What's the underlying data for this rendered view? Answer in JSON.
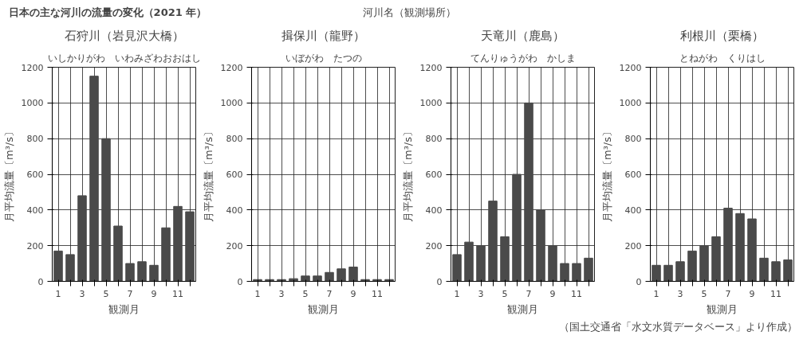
{
  "chart_data": [
    {
      "type": "other",
      "title": "日本の主な河川の流量の変化（2021 年）",
      "annotations": [
        "河川名（観測場所）",
        "（国土交通省「水文水質データベース」より作成）"
      ]
    },
    {
      "type": "bar",
      "title": "石狩川（岩見沢大橋）",
      "subtitle": "いしかりがわ　いわみざわおおはし",
      "xlabel": "観測月",
      "ylabel": "月平均流量〔m³/s〕",
      "categories": [
        "1",
        null,
        "3",
        null,
        "5",
        null,
        "7",
        null,
        "9",
        null,
        "11",
        null
      ],
      "values": [
        170,
        150,
        480,
        1150,
        800,
        310,
        100,
        110,
        90,
        300,
        420,
        390
      ],
      "color": "#4a4a4a",
      "ylim": [
        0,
        1200
      ],
      "yticks": [
        0,
        200,
        400,
        600,
        800,
        1000,
        1200
      ],
      "grid": true
    },
    {
      "type": "bar",
      "title": "揖保川（龍野）",
      "subtitle": "いぼがわ　たつの",
      "xlabel": "観測月",
      "ylabel": "月平均流量〔m³/s〕",
      "categories": [
        "1",
        null,
        "3",
        null,
        "5",
        null,
        "7",
        null,
        "9",
        null,
        "11",
        null
      ],
      "values": [
        10,
        10,
        10,
        15,
        30,
        30,
        50,
        70,
        80,
        10,
        10,
        10
      ],
      "color": "#4a4a4a",
      "ylim": [
        0,
        1200
      ],
      "yticks": [
        0,
        200,
        400,
        600,
        800,
        1000,
        1200
      ],
      "grid": true
    },
    {
      "type": "bar",
      "title": "天竜川（鹿島）",
      "subtitle": "てんりゅうがわ　かしま",
      "xlabel": "観測月",
      "ylabel": "月平均流量〔m³/s〕",
      "categories": [
        "1",
        null,
        "3",
        null,
        "5",
        null,
        "7",
        null,
        "9",
        null,
        "11",
        null
      ],
      "values": [
        150,
        220,
        200,
        450,
        250,
        600,
        1000,
        400,
        200,
        100,
        100,
        130
      ],
      "color": "#4a4a4a",
      "ylim": [
        0,
        1200
      ],
      "yticks": [
        0,
        200,
        400,
        600,
        800,
        1000,
        1200
      ],
      "grid": true
    },
    {
      "type": "bar",
      "title": "利根川（栗橋）",
      "subtitle": "とねがわ　くりはし",
      "xlabel": "観測月",
      "ylabel": "月平均流量〔m³/s〕",
      "categories": [
        "1",
        null,
        "3",
        null,
        "5",
        null,
        "7",
        null,
        "9",
        null,
        "11",
        null
      ],
      "values": [
        90,
        90,
        110,
        170,
        200,
        250,
        410,
        380,
        350,
        130,
        110,
        120
      ],
      "color": "#4a4a4a",
      "ylim": [
        0,
        1200
      ],
      "yticks": [
        0,
        200,
        400,
        600,
        800,
        1000,
        1200
      ],
      "grid": true
    }
  ]
}
